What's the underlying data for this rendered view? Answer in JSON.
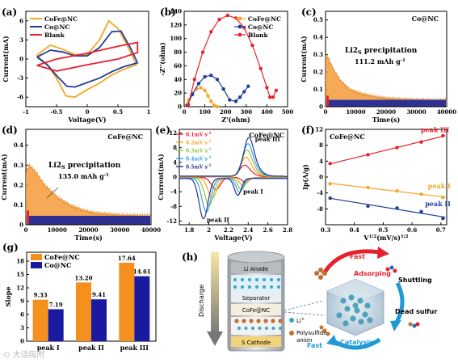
{
  "chart_data": [
    {
      "id": "a",
      "type": "line",
      "panel_label": "(a)",
      "xlabel": "Voltage(V)",
      "ylabel": "Current(mA)",
      "xlim": [
        -1.0,
        1.0
      ],
      "ylim": [
        -7.5,
        7.5
      ],
      "xticks": [
        -1.0,
        -0.5,
        0.0,
        0.5,
        1.0
      ],
      "yticks": [
        -6,
        -3,
        0,
        3,
        6
      ],
      "legend_position": "top-left",
      "series": [
        {
          "name": "CoFe@NC",
          "color": "#f5a623",
          "x": [
            -0.82,
            -0.6,
            -0.4,
            -0.2,
            0.0,
            0.2,
            0.35,
            0.5,
            0.65,
            0.8,
            0.8,
            0.6,
            0.4,
            0.2,
            0.0,
            -0.2,
            -0.35,
            -0.5,
            -0.65,
            -0.82
          ],
          "y": [
            0.6,
            2.2,
            1.5,
            0.7,
            0.7,
            3.0,
            6.0,
            4.8,
            2.2,
            -0.9,
            -0.9,
            -1.6,
            -2.5,
            -3.8,
            -4.8,
            -6.0,
            -5.8,
            -3.0,
            -1.0,
            0.6
          ]
        },
        {
          "name": "Co@NC",
          "color": "#1f3f9b",
          "x": [
            -0.82,
            -0.6,
            -0.4,
            -0.2,
            0.0,
            0.2,
            0.4,
            0.55,
            0.7,
            0.82,
            0.82,
            0.6,
            0.4,
            0.2,
            0.0,
            -0.2,
            -0.33,
            -0.5,
            -0.65,
            -0.82
          ],
          "y": [
            0.3,
            1.4,
            1.1,
            0.5,
            0.5,
            1.8,
            4.3,
            4.4,
            1.8,
            -0.6,
            -0.6,
            -1.2,
            -2.0,
            -3.0,
            -3.7,
            -4.4,
            -4.3,
            -2.6,
            -0.9,
            0.3
          ]
        },
        {
          "name": "Blank",
          "color": "#e8212f",
          "x": [
            -0.82,
            -0.5,
            0.0,
            0.5,
            0.82,
            0.82,
            0.5,
            0.0,
            -0.5,
            -0.82
          ],
          "y": [
            -1.0,
            0.0,
            0.9,
            2.0,
            2.6,
            1.0,
            0.0,
            -0.9,
            -1.9,
            -1.0
          ]
        }
      ]
    },
    {
      "id": "b",
      "type": "scatter",
      "panel_label": "(b)",
      "xlabel": "Z'(ohm)",
      "ylabel": "-Z''(ohm)",
      "xlim": [
        0,
        500
      ],
      "ylim": [
        0,
        140
      ],
      "xticks": [
        0,
        100,
        200,
        300,
        400,
        500
      ],
      "yticks": [
        0,
        20,
        40,
        60,
        80,
        100,
        120,
        140
      ],
      "legend_position": "top-right",
      "series": [
        {
          "name": "CoFe@NC",
          "color": "#f5a623",
          "x": [
            10,
            22,
            40,
            60,
            80,
            100,
            115,
            130,
            145,
            160
          ],
          "y": [
            2,
            10,
            20,
            26,
            28,
            24,
            16,
            8,
            2,
            0
          ]
        },
        {
          "name": "Co@NC",
          "color": "#1f3f9b",
          "x": [
            15,
            40,
            70,
            100,
            130,
            160,
            190,
            220,
            250,
            270,
            290,
            310
          ],
          "y": [
            2,
            18,
            34,
            44,
            46,
            40,
            26,
            10,
            8,
            14,
            22,
            30
          ]
        },
        {
          "name": "Blank",
          "color": "#e8212f",
          "x": [
            20,
            50,
            90,
            130,
            170,
            210,
            250,
            290,
            330,
            370,
            400,
            415,
            430,
            445
          ],
          "y": [
            3,
            40,
            80,
            110,
            128,
            134,
            130,
            116,
            90,
            56,
            28,
            14,
            14,
            24
          ]
        }
      ]
    },
    {
      "id": "c",
      "type": "area",
      "panel_label": "(c)",
      "title": "Co@NC",
      "annotation": "Li2S precipitation",
      "annotation_value": "111.2 mAh g",
      "annotation_superscript": "-1",
      "xlabel": "Time(s)",
      "ylabel": "Current(mA)",
      "xlim": [
        0,
        40000
      ],
      "ylim": [
        0,
        0.55
      ],
      "xticks": [
        0,
        10000,
        20000,
        30000,
        40000
      ],
      "yticks": [
        0.0,
        0.1,
        0.2,
        0.3,
        0.4,
        0.5
      ],
      "series": [
        {
          "name": "current",
          "color": "#f59a3a",
          "x": [
            0,
            1000,
            2500,
            5000,
            8000,
            12000,
            16000,
            20000,
            25000,
            30000,
            35000,
            40000
          ],
          "y": [
            0.3,
            0.28,
            0.22,
            0.15,
            0.1,
            0.075,
            0.06,
            0.05,
            0.045,
            0.042,
            0.04,
            0.04
          ]
        },
        {
          "name": "baseline",
          "color": "#2e3192",
          "x": [
            0,
            40000
          ],
          "y": [
            0.04,
            0.04
          ]
        }
      ]
    },
    {
      "id": "d",
      "type": "area",
      "panel_label": "(d)",
      "title": "CoFe@NC",
      "annotation": "Li2S precipitation",
      "annotation_value": "135.0 mAh g",
      "annotation_superscript": "-1",
      "xlabel": "Time(s)",
      "ylabel": "Current(mA)",
      "xlim": [
        0,
        40000
      ],
      "ylim": [
        0,
        0.48
      ],
      "xticks": [
        0,
        10000,
        20000,
        30000,
        40000
      ],
      "yticks": [
        0.0,
        0.1,
        0.2,
        0.3,
        0.4
      ],
      "series": [
        {
          "name": "current",
          "color": "#f59a3a",
          "x": [
            0,
            1000,
            3000,
            6000,
            10000,
            14000,
            18000,
            22000,
            26000,
            30000,
            35000,
            40000
          ],
          "y": [
            0.26,
            0.3,
            0.27,
            0.2,
            0.14,
            0.1,
            0.075,
            0.06,
            0.055,
            0.05,
            0.048,
            0.046
          ]
        },
        {
          "name": "baseline",
          "color": "#2e3192",
          "x": [
            0,
            40000
          ],
          "y": [
            0.045,
            0.045
          ]
        }
      ]
    },
    {
      "id": "e",
      "type": "line",
      "panel_label": "(e)",
      "title": "CoFe@NC",
      "xlabel": "Voltage(V)",
      "ylabel": "Current(mA)",
      "xlim": [
        1.7,
        2.8
      ],
      "ylim": [
        -13,
        13
      ],
      "xticks": [
        1.8,
        2.0,
        2.2,
        2.4,
        2.6,
        2.8
      ],
      "yticks": [
        -12,
        -8,
        -4,
        0,
        4,
        8,
        12
      ],
      "peak_labels": [
        "peak III",
        "peak I",
        "peak II"
      ],
      "series": [
        {
          "name": "0.1mV s",
          "unit_superscript": "-1",
          "color": "#e8212f",
          "scale": 0.3
        },
        {
          "name": "0.2mV s",
          "unit_superscript": "-1",
          "color": "#f5a623",
          "scale": 0.5
        },
        {
          "name": "0.3mV s",
          "unit_superscript": "-1",
          "color": "#8bc34a",
          "scale": 0.68
        },
        {
          "name": "0.4mV s",
          "unit_superscript": "-1",
          "color": "#29a8e0",
          "scale": 0.84
        },
        {
          "name": "0.5mV s",
          "unit_superscript": "-1",
          "color": "#2e3192",
          "scale": 1.0
        }
      ]
    },
    {
      "id": "f",
      "type": "scatter",
      "panel_label": "(f)",
      "title": "CoFe@NC",
      "xlabel": "V",
      "xlabel_superscript": "1/2",
      "xlabel_rest": "(mV/s)",
      "xlabel_rest_superscript": "1/2",
      "ylabel": "Ip(A/g)",
      "xlim": [
        0.3,
        0.72
      ],
      "ylim": [
        -12,
        12
      ],
      "xticks": [
        0.3,
        0.4,
        0.5,
        0.6,
        0.7
      ],
      "yticks": [
        -8,
        -4,
        0,
        4,
        8,
        12
      ],
      "series": [
        {
          "name": "peak III",
          "color": "#e8212f",
          "x": [
            0.316,
            0.447,
            0.548,
            0.632,
            0.707
          ],
          "y": [
            3.4,
            5.6,
            7.4,
            8.8,
            10.4
          ]
        },
        {
          "name": "peak I",
          "color": "#f5a623",
          "x": [
            0.316,
            0.447,
            0.548,
            0.632,
            0.707
          ],
          "y": [
            -1.7,
            -2.6,
            -3.5,
            -4.3,
            -5.1
          ]
        },
        {
          "name": "peak II",
          "color": "#1f3f9b",
          "x": [
            0.316,
            0.447,
            0.548,
            0.632,
            0.707
          ],
          "y": [
            -5.3,
            -7.3,
            -7.8,
            -8.7,
            -10.4
          ]
        }
      ]
    },
    {
      "id": "g",
      "type": "bar",
      "panel_label": "(g)",
      "ylabel": "Slope",
      "categories": [
        "peak I",
        "peak II",
        "peak III"
      ],
      "ylim": [
        0,
        20
      ],
      "yticks": [
        0,
        3,
        6,
        9,
        12,
        15,
        18
      ],
      "legend_position": "top-left",
      "series": [
        {
          "name": "CoFe@NC",
          "color": "#f5901e",
          "values": [
            9.33,
            13.2,
            17.64
          ]
        },
        {
          "name": "Co@NC",
          "color": "#1a1aa0",
          "values": [
            7.19,
            9.41,
            14.61
          ]
        }
      ]
    }
  ],
  "diagram_h": {
    "panel_label": "(h)",
    "cell_labels": [
      "Li Anode",
      "Separator",
      "CoFe@NC",
      "S Cathode"
    ],
    "arrow_label": "Discharge",
    "legend": [
      "Li",
      "Polysulfide",
      "anion"
    ],
    "legend_superscript": "+",
    "cycle_labels": [
      "Fast",
      "Adsorping",
      "Shuttling",
      "Dead sulfur",
      "Catalysis",
      "Fast"
    ],
    "colors": {
      "red_arrow": "#e8212f",
      "blue_arrow": "#1e9ad6",
      "li_ion": "#3aa6c8",
      "polysulfide": "#c07030"
    }
  },
  "watermark": "⊙ 大话吸附"
}
